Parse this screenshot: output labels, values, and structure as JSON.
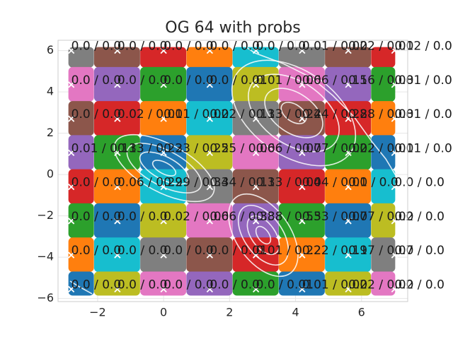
{
  "chart_data": {
    "type": "scatter",
    "title": "OG 64 with probs",
    "xlim": [
      -3.2,
      7.4
    ],
    "ylim": [
      -6.15,
      6.5
    ],
    "xticks": [
      {
        "value": -2,
        "label": "−2"
      },
      0,
      2,
      4,
      6
    ],
    "yticks": [
      {
        "value": -6,
        "label": "−6"
      },
      {
        "value": -4,
        "label": "−4"
      },
      {
        "value": -2,
        "label": "−2"
      },
      0,
      2,
      4,
      6
    ],
    "grid": true,
    "marker_color": "#ffffff",
    "x": [
      -2.8,
      -1.4,
      0,
      1.4,
      2.8,
      4.2,
      5.6,
      7.0,
      -2.8,
      -1.4,
      0,
      1.4,
      2.8,
      4.2,
      5.6,
      7.0,
      -2.8,
      -1.4,
      0,
      1.4,
      2.8,
      4.2,
      5.6,
      7.0,
      -2.8,
      -1.4,
      0,
      1.4,
      2.8,
      4.2,
      5.6,
      7.0,
      -2.8,
      -1.4,
      0,
      1.4,
      2.8,
      4.2,
      5.6,
      7.0,
      -2.8,
      -1.4,
      0,
      1.4,
      2.8,
      4.2,
      5.6,
      7.0,
      -2.8,
      -1.4,
      0,
      1.4,
      2.8,
      4.2,
      5.6,
      7.0,
      -2.8,
      -1.4,
      0,
      1.4,
      2.8,
      4.2,
      5.6,
      7.0
    ],
    "y": [
      6,
      6,
      6,
      6,
      6,
      6,
      6,
      6,
      4.35,
      4.35,
      4.35,
      4.35,
      4.35,
      4.35,
      4.35,
      4.35,
      2.7,
      2.7,
      2.7,
      2.7,
      2.7,
      2.7,
      2.7,
      2.7,
      1.05,
      1.05,
      1.05,
      1.05,
      1.05,
      1.05,
      1.05,
      1.05,
      -0.6,
      -0.6,
      -0.6,
      -0.6,
      -0.6,
      -0.6,
      -0.6,
      -0.6,
      -2.25,
      -2.25,
      -2.25,
      -2.25,
      -2.25,
      -2.25,
      -2.25,
      -2.25,
      -3.9,
      -3.9,
      -3.9,
      -3.9,
      -3.9,
      -3.9,
      -3.9,
      -3.9,
      -5.55,
      -5.55,
      -5.55,
      -5.55,
      -5.55,
      -5.55,
      -5.55,
      -5.55
    ],
    "colors": [
      "#7f7f7f",
      "#8c564b",
      "#d62728",
      "#ff7f0e",
      "#17becf",
      "#7f7f7f",
      "#8c564b",
      "#d62728",
      "#e377c2",
      "#9467bd",
      "#2ca02c",
      "#1f77b4",
      "#bcbd22",
      "#e377c2",
      "#9467bd",
      "#2ca02c",
      "#8c564b",
      "#d62728",
      "#ff7f0e",
      "#17becf",
      "#7f7f7f",
      "#8c564b",
      "#d62728",
      "#ff7f0e",
      "#9467bd",
      "#2ca02c",
      "#1f77b4",
      "#bcbd22",
      "#e377c2",
      "#9467bd",
      "#2ca02c",
      "#1f77b4",
      "#d62728",
      "#ff7f0e",
      "#17becf",
      "#7f7f7f",
      "#8c564b",
      "#d62728",
      "#ff7f0e",
      "#17becf",
      "#2ca02c",
      "#1f77b4",
      "#bcbd22",
      "#e377c2",
      "#9467bd",
      "#2ca02c",
      "#1f77b4",
      "#bcbd22",
      "#ff7f0e",
      "#17becf",
      "#7f7f7f",
      "#8c564b",
      "#d62728",
      "#ff7f0e",
      "#17becf",
      "#7f7f7f",
      "#1f77b4",
      "#bcbd22",
      "#e377c2",
      "#9467bd",
      "#2ca02c",
      "#1f77b4",
      "#bcbd22",
      "#e377c2"
    ],
    "labels": [
      "0.0 / 0.0",
      "0.0 / 0.0",
      "0.0 / 0.0",
      "0.0 / 0.0",
      "0.0 / 0.0",
      "0.01 / 0.02",
      "0.02 / 0.01",
      "0.02 / 0.0",
      "0.0 / 0.0",
      "0.0 / 0.0",
      "0.0 / 0.0",
      "0.0 / 0.01",
      "0.01 / 0.06",
      "0.06 / 0.15",
      "0.16 / 0.08",
      "0.01 / 0.0",
      "0.0 / 0.0",
      "0.02 / 0.01",
      "0.01 / 0.02",
      "0.02 / 0.13",
      "0.13 / 0.24",
      "0.24 / 0.28",
      "0.28 / 0.08",
      "0.01 / 0.0",
      "0.01 / 0.13",
      "0.13 / 0.23",
      "0.23 / 0.25",
      "0.25 / 0.06",
      "0.06 / 0.07",
      "0.07 / 0.02",
      "0.02 / 0.01",
      "0.01 / 0.0",
      "0.0 / 0.0",
      "0.06 / 0.29",
      "0.29 / 0.34",
      "0.34 / 0.13",
      "0.13 / 0.04",
      "0.04 / 0.01",
      "0.0 / 0.0",
      "0.0 / 0.0",
      "0.0 / 0.0",
      "0.0 / 0.0",
      "0.02 / 0.06",
      "0.06 / 0.38",
      "0.38 / 0.53",
      "0.53 / 0.07",
      "0.07 / 0.02",
      "0.0 / 0.0",
      "0.0 / 0.0",
      "0.0 / 0.0",
      "0.0 / 0.0",
      "0.0 / 0.01",
      "0.01 / 0.22",
      "0.22 / 0.19",
      "0.17 / 0.07",
      "0.0 / 0.0",
      "0.0 / 0.0",
      "0.0 / 0.0",
      "0.0 / 0.0",
      "0.0 / 0.0",
      "0.0 / 0.01",
      "0.01 / 0.02",
      "0.02 / 0.02",
      "0.0 / 0.0"
    ]
  }
}
